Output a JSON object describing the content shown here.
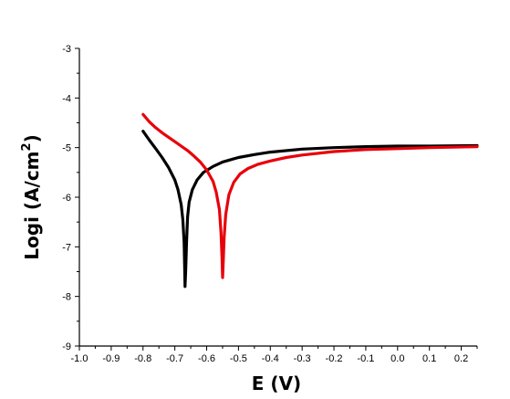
{
  "chart_data": {
    "type": "line",
    "xlabel": "E (V)",
    "ylabel": {
      "base": "Logi (A/cm",
      "sup": "2",
      "close": ")"
    },
    "xlim": [
      -1.0,
      0.25
    ],
    "ylim": [
      -9,
      -3
    ],
    "xticks": [
      "-1.0",
      "-0.9",
      "-0.8",
      "-0.7",
      "-0.6",
      "-0.5",
      "-0.4",
      "-0.3",
      "-0.2",
      "-0.1",
      "0.0",
      "0.1",
      "0.2"
    ],
    "yticks": [
      "-3",
      "-4",
      "-5",
      "-6",
      "-7",
      "-8",
      "-9"
    ],
    "legend": "none",
    "grid": false,
    "series": [
      {
        "color": "#000000",
        "points": [
          [
            -0.8,
            -4.67
          ],
          [
            -0.78,
            -4.85
          ],
          [
            -0.76,
            -5.02
          ],
          [
            -0.74,
            -5.2
          ],
          [
            -0.72,
            -5.4
          ],
          [
            -0.7,
            -5.65
          ],
          [
            -0.69,
            -5.85
          ],
          [
            -0.68,
            -6.15
          ],
          [
            -0.675,
            -6.45
          ],
          [
            -0.671,
            -6.9
          ],
          [
            -0.669,
            -7.5
          ],
          [
            -0.668,
            -7.8
          ],
          [
            -0.666,
            -7.5
          ],
          [
            -0.663,
            -6.9
          ],
          [
            -0.66,
            -6.4
          ],
          [
            -0.655,
            -6.1
          ],
          [
            -0.645,
            -5.85
          ],
          [
            -0.63,
            -5.65
          ],
          [
            -0.61,
            -5.5
          ],
          [
            -0.58,
            -5.38
          ],
          [
            -0.55,
            -5.29
          ],
          [
            -0.5,
            -5.2
          ],
          [
            -0.45,
            -5.14
          ],
          [
            -0.4,
            -5.09
          ],
          [
            -0.3,
            -5.03
          ],
          [
            -0.2,
            -5.0
          ],
          [
            -0.1,
            -4.98
          ],
          [
            0.0,
            -4.97
          ],
          [
            0.1,
            -4.97
          ],
          [
            0.25,
            -4.96
          ]
        ]
      },
      {
        "color": "#e8000b",
        "points": [
          [
            -0.8,
            -4.33
          ],
          [
            -0.78,
            -4.48
          ],
          [
            -0.76,
            -4.6
          ],
          [
            -0.74,
            -4.7
          ],
          [
            -0.72,
            -4.79
          ],
          [
            -0.7,
            -4.88
          ],
          [
            -0.68,
            -4.97
          ],
          [
            -0.66,
            -5.06
          ],
          [
            -0.64,
            -5.17
          ],
          [
            -0.62,
            -5.29
          ],
          [
            -0.6,
            -5.45
          ],
          [
            -0.58,
            -5.68
          ],
          [
            -0.57,
            -5.9
          ],
          [
            -0.56,
            -6.25
          ],
          [
            -0.555,
            -6.7
          ],
          [
            -0.552,
            -7.2
          ],
          [
            -0.55,
            -7.62
          ],
          [
            -0.548,
            -7.3
          ],
          [
            -0.545,
            -6.8
          ],
          [
            -0.54,
            -6.35
          ],
          [
            -0.53,
            -5.95
          ],
          [
            -0.515,
            -5.7
          ],
          [
            -0.495,
            -5.53
          ],
          [
            -0.47,
            -5.42
          ],
          [
            -0.44,
            -5.34
          ],
          [
            -0.4,
            -5.27
          ],
          [
            -0.35,
            -5.2
          ],
          [
            -0.3,
            -5.15
          ],
          [
            -0.2,
            -5.08
          ],
          [
            -0.1,
            -5.04
          ],
          [
            0.0,
            -5.02
          ],
          [
            0.1,
            -5.0
          ],
          [
            0.25,
            -4.98
          ]
        ]
      }
    ]
  }
}
